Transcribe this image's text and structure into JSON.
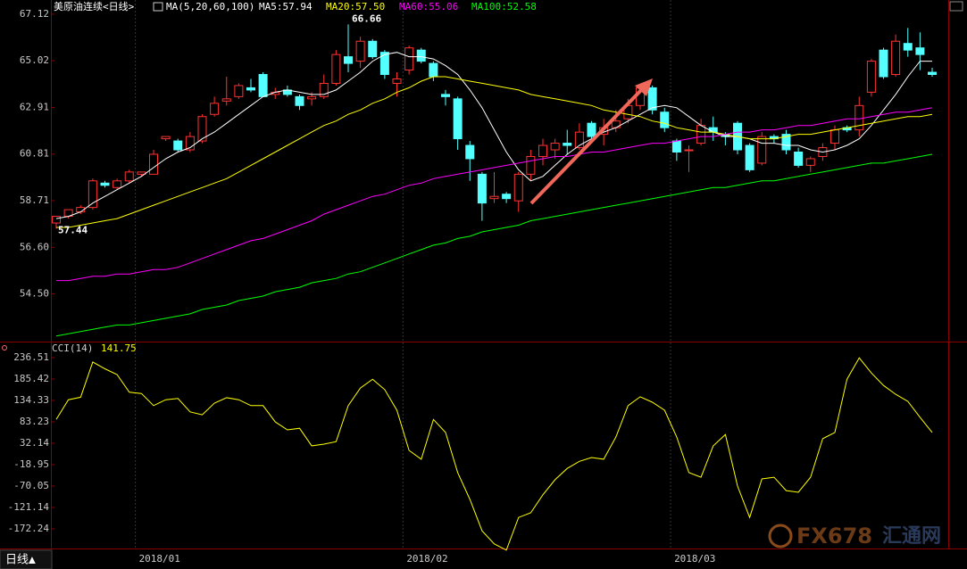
{
  "chart_data": [
    {
      "type": "candlestick",
      "title": "美原油连续<日线>",
      "indicator": "MA(5,20,60,100)",
      "categories": [
        null,
        null,
        null,
        null,
        null,
        null,
        null,
        "2018/01",
        null,
        null,
        null,
        null,
        null,
        null,
        null,
        null,
        null,
        null,
        null,
        null,
        null,
        null,
        null,
        null,
        null,
        null,
        null,
        null,
        null,
        "2018/02",
        null,
        null,
        null,
        null,
        null,
        null,
        null,
        null,
        null,
        null,
        null,
        null,
        null,
        null,
        null,
        null,
        null,
        null,
        null,
        null,
        null,
        "2018/03",
        null,
        null,
        null,
        null,
        null,
        null,
        null,
        null,
        null,
        null,
        null,
        null,
        null,
        null,
        null,
        null,
        null,
        null,
        null,
        null,
        null
      ],
      "open": [
        57.7,
        58.0,
        58.2,
        58.4,
        59.5,
        59.3,
        59.6,
        59.9,
        59.9,
        61.5,
        61.4,
        61.0,
        61.4,
        62.6,
        63.2,
        63.4,
        63.8,
        64.4,
        63.5,
        63.7,
        63.4,
        63.3,
        63.4,
        64.0,
        65.2,
        65.0,
        65.9,
        65.4,
        64.0,
        64.6,
        65.5,
        64.9,
        63.5,
        63.3,
        61.2,
        59.9,
        58.8,
        59.0,
        58.7,
        59.9,
        60.7,
        61.0,
        61.3,
        61.1,
        62.2,
        61.7,
        62.0,
        62.4,
        63.0,
        63.8,
        62.7,
        61.4,
        61.0,
        61.3,
        62.0,
        61.7,
        62.2,
        61.2,
        60.4,
        61.6,
        61.7,
        60.9,
        60.3,
        60.7,
        61.3,
        62.0,
        61.9,
        63.6,
        65.5,
        64.4,
        65.8,
        65.6,
        64.5
      ],
      "high": [
        58.0,
        58.3,
        58.5,
        59.7,
        59.6,
        59.7,
        60.1,
        60.0,
        61.0,
        61.6,
        61.5,
        61.8,
        62.6,
        63.4,
        64.3,
        64.0,
        64.2,
        64.5,
        63.8,
        63.9,
        63.5,
        63.6,
        64.4,
        65.5,
        66.66,
        66.1,
        66.0,
        65.5,
        64.5,
        65.7,
        65.6,
        65.0,
        63.7,
        63.4,
        61.4,
        60.0,
        60.0,
        59.1,
        60.0,
        61.0,
        61.5,
        61.5,
        61.9,
        62.2,
        62.3,
        62.4,
        62.8,
        63.3,
        63.9,
        63.9,
        62.9,
        61.5,
        61.2,
        62.4,
        62.5,
        61.8,
        62.3,
        61.3,
        61.8,
        61.7,
        61.9,
        61.1,
        60.7,
        61.3,
        62.1,
        62.1,
        63.4,
        65.1,
        65.6,
        66.2,
        66.5,
        66.3,
        64.7
      ],
      "low": [
        57.44,
        57.9,
        58.1,
        58.3,
        59.3,
        59.2,
        59.5,
        59.8,
        59.9,
        61.4,
        60.9,
        60.9,
        61.3,
        62.5,
        63.0,
        63.3,
        63.6,
        63.4,
        63.3,
        63.4,
        62.8,
        63.0,
        63.3,
        63.9,
        64.5,
        64.7,
        65.1,
        64.2,
        63.4,
        64.4,
        64.9,
        64.1,
        63.0,
        61.0,
        59.6,
        57.8,
        58.6,
        58.6,
        58.2,
        59.6,
        60.3,
        60.6,
        60.8,
        61.0,
        61.5,
        61.2,
        61.8,
        62.2,
        62.8,
        62.6,
        61.8,
        60.5,
        60.0,
        61.2,
        61.4,
        61.2,
        60.8,
        60.0,
        60.3,
        61.3,
        60.8,
        60.2,
        60.0,
        60.5,
        61.0,
        61.8,
        61.6,
        63.4,
        64.2,
        64.3,
        65.2,
        64.6,
        64.3
      ],
      "close": [
        58.0,
        58.3,
        58.4,
        59.6,
        59.4,
        59.6,
        60.0,
        60.0,
        60.8,
        61.6,
        61.0,
        61.6,
        62.5,
        63.1,
        63.3,
        63.9,
        63.7,
        63.4,
        63.6,
        63.5,
        63.0,
        63.4,
        64.0,
        65.3,
        64.9,
        65.9,
        65.2,
        64.4,
        64.2,
        65.6,
        65.0,
        64.3,
        63.4,
        61.5,
        60.6,
        58.6,
        58.9,
        58.8,
        59.9,
        60.7,
        61.2,
        61.3,
        61.2,
        61.8,
        61.6,
        62.0,
        62.3,
        63.0,
        63.8,
        62.8,
        62.0,
        60.9,
        61.0,
        62.1,
        61.8,
        61.6,
        61.0,
        60.1,
        61.6,
        61.5,
        61.0,
        60.3,
        60.6,
        61.1,
        61.9,
        61.9,
        63.0,
        65.0,
        64.3,
        65.9,
        65.5,
        65.3,
        64.4
      ],
      "up_color": "#ff3232",
      "down_color": "#54ffff",
      "series": [
        {
          "name": "MA5:57.94",
          "color": "#ffffff",
          "values": [
            57.9,
            58.0,
            58.2,
            58.6,
            58.9,
            59.2,
            59.5,
            59.8,
            60.2,
            60.6,
            60.9,
            61.1,
            61.5,
            61.8,
            62.2,
            62.6,
            63.0,
            63.4,
            63.6,
            63.7,
            63.6,
            63.5,
            63.5,
            63.7,
            64.1,
            64.5,
            65.0,
            65.3,
            65.4,
            65.2,
            65.2,
            65.1,
            64.8,
            64.4,
            63.7,
            62.9,
            61.9,
            60.9,
            60.1,
            59.6,
            59.8,
            60.3,
            60.8,
            61.2,
            61.5,
            61.8,
            62.0,
            62.3,
            62.6,
            62.9,
            63.0,
            62.9,
            62.5,
            62.1,
            61.8,
            61.6,
            61.6,
            61.5,
            61.3,
            61.3,
            61.2,
            61.2,
            61.0,
            60.9,
            61.0,
            61.2,
            61.5,
            62.1,
            62.8,
            63.5,
            64.3,
            65.0,
            65.0
          ]
        },
        {
          "name": "MA20:57.50",
          "color": "#ffff00",
          "values": [
            57.5,
            57.5,
            57.6,
            57.7,
            57.8,
            57.9,
            58.1,
            58.3,
            58.5,
            58.7,
            58.9,
            59.1,
            59.3,
            59.5,
            59.7,
            60.0,
            60.3,
            60.6,
            60.9,
            61.2,
            61.5,
            61.8,
            62.1,
            62.3,
            62.6,
            62.8,
            63.1,
            63.3,
            63.6,
            63.8,
            64.1,
            64.3,
            64.3,
            64.2,
            64.1,
            64.0,
            63.9,
            63.8,
            63.7,
            63.5,
            63.4,
            63.3,
            63.2,
            63.1,
            63.0,
            62.8,
            62.7,
            62.6,
            62.5,
            62.3,
            62.2,
            62.0,
            61.9,
            61.8,
            61.8,
            61.7,
            61.6,
            61.5,
            61.5,
            61.5,
            61.6,
            61.7,
            61.7,
            61.8,
            61.9,
            62.0,
            62.1,
            62.2,
            62.3,
            62.4,
            62.5,
            62.5,
            62.6
          ]
        },
        {
          "name": "MA60:55.06",
          "color": "#ff00ff",
          "values": [
            55.1,
            55.1,
            55.2,
            55.3,
            55.3,
            55.4,
            55.4,
            55.5,
            55.6,
            55.6,
            55.7,
            55.9,
            56.1,
            56.3,
            56.5,
            56.7,
            56.9,
            57.0,
            57.2,
            57.4,
            57.6,
            57.8,
            58.1,
            58.3,
            58.5,
            58.7,
            58.9,
            59.0,
            59.2,
            59.4,
            59.5,
            59.7,
            59.8,
            59.9,
            60.0,
            60.1,
            60.2,
            60.3,
            60.4,
            60.5,
            60.6,
            60.7,
            60.7,
            60.8,
            60.9,
            60.9,
            61.0,
            61.1,
            61.2,
            61.3,
            61.3,
            61.4,
            61.5,
            61.6,
            61.6,
            61.7,
            61.8,
            61.8,
            61.9,
            61.9,
            62.0,
            62.1,
            62.1,
            62.2,
            62.3,
            62.4,
            62.4,
            62.5,
            62.6,
            62.7,
            62.7,
            62.8,
            62.9
          ]
        },
        {
          "name": "MA100:52.58",
          "color": "#00ff00",
          "values": [
            52.6,
            52.7,
            52.8,
            52.9,
            53.0,
            53.1,
            53.1,
            53.2,
            53.3,
            53.4,
            53.5,
            53.6,
            53.8,
            53.9,
            54.0,
            54.2,
            54.3,
            54.4,
            54.6,
            54.7,
            54.8,
            55.0,
            55.1,
            55.2,
            55.4,
            55.5,
            55.7,
            55.9,
            56.1,
            56.3,
            56.5,
            56.7,
            56.8,
            57.0,
            57.1,
            57.3,
            57.4,
            57.5,
            57.6,
            57.8,
            57.9,
            58.0,
            58.1,
            58.2,
            58.3,
            58.4,
            58.5,
            58.6,
            58.7,
            58.8,
            58.9,
            59.0,
            59.1,
            59.2,
            59.3,
            59.3,
            59.4,
            59.5,
            59.6,
            59.6,
            59.7,
            59.8,
            59.9,
            60.0,
            60.1,
            60.2,
            60.3,
            60.4,
            60.4,
            60.5,
            60.6,
            60.7,
            60.8
          ]
        }
      ],
      "ylim": [
        52.39,
        67.76
      ],
      "yticks": [
        {
          "value": 54.5,
          "label": "54.50"
        },
        {
          "value": 56.6,
          "label": "56.60"
        },
        58.71,
        60.81,
        62.91,
        65.02,
        67.12
      ]
    },
    {
      "type": "line",
      "title": "CCI(14)",
      "current_value": 141.75,
      "color": "#ffff00",
      "values": [
        89,
        136,
        142,
        226,
        210,
        196,
        154,
        151,
        122,
        136,
        139,
        107,
        100,
        128,
        141,
        136,
        122,
        122,
        83,
        64,
        68,
        26,
        30,
        36,
        122,
        164,
        185,
        160,
        111,
        15,
        -6,
        89,
        58,
        -38,
        -102,
        -177,
        -208,
        -223,
        -145,
        -134,
        -91,
        -55,
        -28,
        -11,
        -2,
        -6,
        47,
        122,
        143,
        130,
        111,
        47,
        -38,
        -49,
        26,
        53,
        -70,
        -145,
        -53,
        -49,
        -81,
        -85,
        -49,
        43,
        58,
        185,
        236,
        200,
        170,
        149,
        132,
        94,
        58
      ],
      "ylim": [
        -219.1,
        270.6
      ],
      "yticks": [
        -172.24,
        -121.14,
        -70.05,
        -18.95,
        32.14,
        83.23,
        134.33,
        185.42,
        236.51
      ]
    }
  ],
  "ui": {
    "period_tab": "日线▲",
    "watermark": "FX678",
    "watermark_cn": "汇通网"
  }
}
